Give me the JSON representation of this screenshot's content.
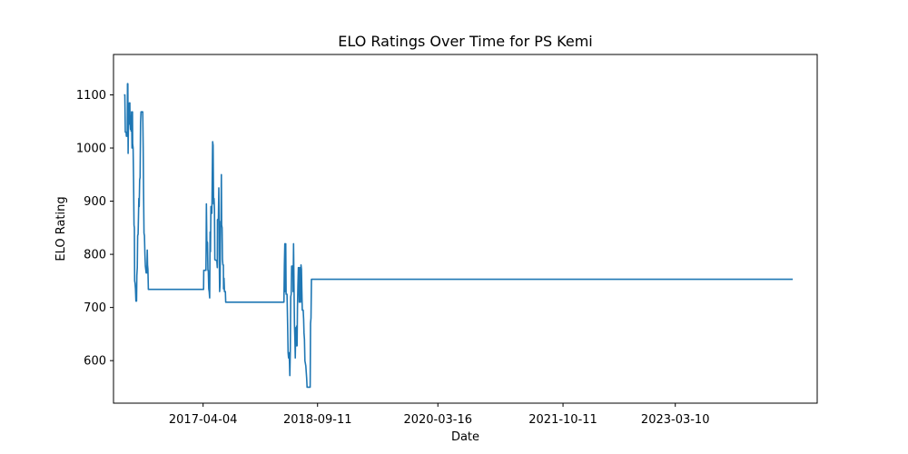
{
  "chart_data": {
    "type": "line",
    "title": "ELO Ratings Over Time for PS Kemi",
    "xlabel": "Date",
    "ylabel": "ELO Rating",
    "xlim": [
      "2016-02-18",
      "2024-12-20"
    ],
    "ylim": [
      520,
      1176
    ],
    "x_ticks": [
      "2017-04-04",
      "2018-09-11",
      "2020-03-16",
      "2021-10-11",
      "2023-03-10"
    ],
    "y_ticks": [
      600,
      700,
      800,
      900,
      1000,
      1100
    ],
    "grid": false,
    "line_color": "#1f77b4",
    "series": [
      {
        "points": [
          [
            "2016-04-06",
            1100
          ],
          [
            "2016-04-10",
            1100
          ],
          [
            "2016-04-12",
            1030
          ],
          [
            "2016-04-16",
            1030
          ],
          [
            "2016-04-17",
            1022
          ],
          [
            "2016-04-21",
            1022
          ],
          [
            "2016-04-22",
            1121
          ],
          [
            "2016-04-24",
            1121
          ],
          [
            "2016-04-25",
            990
          ],
          [
            "2016-04-27",
            1068
          ],
          [
            "2016-04-29",
            1045
          ],
          [
            "2016-05-01",
            1085
          ],
          [
            "2016-05-03",
            1085
          ],
          [
            "2016-05-04",
            1052
          ],
          [
            "2016-05-06",
            1035
          ],
          [
            "2016-05-07",
            1060
          ],
          [
            "2016-05-09",
            1032
          ],
          [
            "2016-05-11",
            1068
          ],
          [
            "2016-05-13",
            1000
          ],
          [
            "2016-05-15",
            1068
          ],
          [
            "2016-05-16",
            1008
          ],
          [
            "2016-05-18",
            1000
          ],
          [
            "2016-05-20",
            940
          ],
          [
            "2016-05-22",
            855
          ],
          [
            "2016-05-24",
            850
          ],
          [
            "2016-05-25",
            750
          ],
          [
            "2016-05-27",
            745
          ],
          [
            "2016-05-29",
            735
          ],
          [
            "2016-05-31",
            712
          ],
          [
            "2016-06-03",
            712
          ],
          [
            "2016-06-04",
            760
          ],
          [
            "2016-06-06",
            775
          ],
          [
            "2016-06-08",
            835
          ],
          [
            "2016-06-10",
            838
          ],
          [
            "2016-06-12",
            880
          ],
          [
            "2016-06-13",
            905
          ],
          [
            "2016-06-15",
            890
          ],
          [
            "2016-06-17",
            940
          ],
          [
            "2016-06-19",
            945
          ],
          [
            "2016-06-21",
            1048
          ],
          [
            "2016-06-23",
            1068
          ],
          [
            "2016-07-01",
            1068
          ],
          [
            "2016-07-03",
            1000
          ],
          [
            "2016-07-05",
            920
          ],
          [
            "2016-07-07",
            840
          ],
          [
            "2016-07-09",
            835
          ],
          [
            "2016-07-11",
            800
          ],
          [
            "2016-07-13",
            778
          ],
          [
            "2016-07-15",
            772
          ],
          [
            "2016-07-17",
            765
          ],
          [
            "2016-07-20",
            765
          ],
          [
            "2016-07-22",
            808
          ],
          [
            "2016-07-23",
            780
          ],
          [
            "2016-07-25",
            772
          ],
          [
            "2016-07-27",
            734
          ],
          [
            "2017-04-06",
            734
          ],
          [
            "2017-04-07",
            770
          ],
          [
            "2017-04-17",
            770
          ],
          [
            "2017-04-18",
            805
          ],
          [
            "2017-04-19",
            895
          ],
          [
            "2017-04-21",
            825
          ],
          [
            "2017-04-24",
            822
          ],
          [
            "2017-04-26",
            770
          ],
          [
            "2017-04-28",
            770
          ],
          [
            "2017-04-30",
            735
          ],
          [
            "2017-05-02",
            730
          ],
          [
            "2017-05-04",
            718
          ],
          [
            "2017-05-06",
            842
          ],
          [
            "2017-05-08",
            805
          ],
          [
            "2017-05-10",
            890
          ],
          [
            "2017-05-12",
            877
          ],
          [
            "2017-05-14",
            877
          ],
          [
            "2017-05-15",
            900
          ],
          [
            "2017-05-17",
            985
          ],
          [
            "2017-05-18",
            1012
          ],
          [
            "2017-05-20",
            1005
          ],
          [
            "2017-05-22",
            895
          ],
          [
            "2017-05-24",
            905
          ],
          [
            "2017-05-26",
            885
          ],
          [
            "2017-05-28",
            790
          ],
          [
            "2017-06-06",
            788
          ],
          [
            "2017-06-08",
            775
          ],
          [
            "2017-06-09",
            865
          ],
          [
            "2017-06-13",
            867
          ],
          [
            "2017-06-15",
            925
          ],
          [
            "2017-06-17",
            800
          ],
          [
            "2017-06-19",
            730
          ],
          [
            "2017-06-21",
            745
          ],
          [
            "2017-06-23",
            862
          ],
          [
            "2017-06-25",
            862
          ],
          [
            "2017-06-27",
            950
          ],
          [
            "2017-06-28",
            855
          ],
          [
            "2017-06-30",
            850
          ],
          [
            "2017-07-02",
            790
          ],
          [
            "2017-07-04",
            780
          ],
          [
            "2017-07-06",
            780
          ],
          [
            "2017-07-07",
            735
          ],
          [
            "2017-07-09",
            755
          ],
          [
            "2017-07-11",
            730
          ],
          [
            "2017-07-15",
            730
          ],
          [
            "2017-07-17",
            710
          ],
          [
            "2018-04-10",
            710
          ],
          [
            "2018-04-12",
            780
          ],
          [
            "2018-04-14",
            820
          ],
          [
            "2018-04-16",
            730
          ],
          [
            "2018-04-18",
            820
          ],
          [
            "2018-04-20",
            725
          ],
          [
            "2018-04-24",
            725
          ],
          [
            "2018-04-25",
            710
          ],
          [
            "2018-04-27",
            665
          ],
          [
            "2018-04-29",
            615
          ],
          [
            "2018-05-01",
            605
          ],
          [
            "2018-05-03",
            615
          ],
          [
            "2018-05-05",
            598
          ],
          [
            "2018-05-07",
            572
          ],
          [
            "2018-05-09",
            615
          ],
          [
            "2018-05-11",
            720
          ],
          [
            "2018-05-13",
            725
          ],
          [
            "2018-05-15",
            778
          ],
          [
            "2018-05-21",
            778
          ],
          [
            "2018-05-22",
            730
          ],
          [
            "2018-05-24",
            820
          ],
          [
            "2018-05-26",
            740
          ],
          [
            "2018-05-28",
            668
          ],
          [
            "2018-05-30",
            640
          ],
          [
            "2018-06-01",
            605
          ],
          [
            "2018-06-03",
            662
          ],
          [
            "2018-06-05",
            628
          ],
          [
            "2018-06-07",
            665
          ],
          [
            "2018-06-09",
            628
          ],
          [
            "2018-06-11",
            700
          ],
          [
            "2018-06-13",
            742
          ],
          [
            "2018-06-15",
            775
          ],
          [
            "2018-06-17",
            770
          ],
          [
            "2018-06-19",
            710
          ],
          [
            "2018-06-21",
            775
          ],
          [
            "2018-06-23",
            745
          ],
          [
            "2018-06-25",
            710
          ],
          [
            "2018-06-27",
            780
          ],
          [
            "2018-06-29",
            772
          ],
          [
            "2018-07-01",
            735
          ],
          [
            "2018-07-03",
            695
          ],
          [
            "2018-07-07",
            695
          ],
          [
            "2018-07-09",
            678
          ],
          [
            "2018-07-11",
            652
          ],
          [
            "2018-07-13",
            640
          ],
          [
            "2018-07-15",
            600
          ],
          [
            "2018-07-17",
            595
          ],
          [
            "2018-07-19",
            590
          ],
          [
            "2018-07-21",
            580
          ],
          [
            "2018-07-23",
            568
          ],
          [
            "2018-07-25",
            550
          ],
          [
            "2018-08-08",
            550
          ],
          [
            "2018-08-10",
            670
          ],
          [
            "2018-08-12",
            680
          ],
          [
            "2018-08-14",
            753
          ],
          [
            "2024-08-30",
            753
          ]
        ]
      }
    ]
  }
}
